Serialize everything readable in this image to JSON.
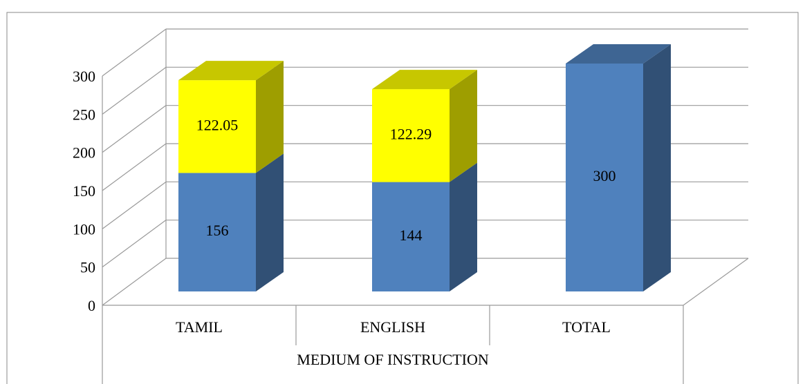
{
  "chart_data": {
    "type": "bar3d_stacked",
    "categories": [
      "TAMIL",
      "ENGLISH",
      "TOTAL"
    ],
    "x_label": "MEDIUM OF INSTRUCTION",
    "series": [
      {
        "color": "#4f81bd",
        "values": [
          156,
          144,
          300
        ]
      },
      {
        "color": "#ffff00",
        "values": [
          122.05,
          122.29,
          null
        ]
      }
    ],
    "ylim": [
      0,
      300
    ],
    "yticks": [
      0,
      50,
      100,
      150,
      200,
      250,
      300
    ],
    "grid": true,
    "stacked": true
  }
}
